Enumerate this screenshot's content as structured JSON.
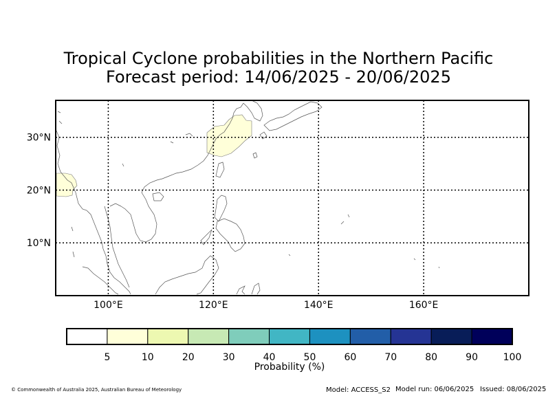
{
  "title_line1": "Tropical Cyclone probabilities in the Northern Pacific",
  "title_line2": "Forecast period: 14/06/2025 - 20/06/2025",
  "map": {
    "lon_range": [
      90,
      180
    ],
    "lat_range": [
      0,
      37
    ],
    "lon_ticks": [
      100,
      120,
      140,
      160
    ],
    "lat_ticks": [
      10,
      20,
      30
    ],
    "lon_tick_labels": [
      "100°E",
      "120°E",
      "140°E",
      "160°E"
    ],
    "lat_tick_labels": [
      "10°N",
      "20°N",
      "30°N"
    ],
    "probability_areas": [
      {
        "name": "East China Sea",
        "probability_bin": "5-10"
      },
      {
        "name": "Northern Myanmar / Bay of Bengal edge",
        "probability_bin": "5-10"
      }
    ]
  },
  "colorbar": {
    "label": "Probability (%)",
    "tick_labels": [
      "5",
      "10",
      "20",
      "30",
      "40",
      "50",
      "60",
      "70",
      "80",
      "90",
      "100"
    ],
    "colors": [
      "#ffffff",
      "#ffffd9",
      "#edf8b1",
      "#c7e9b4",
      "#7fcdbb",
      "#41b6c4",
      "#1d91c0",
      "#225ea8",
      "#253494",
      "#081d58",
      "#00005a"
    ]
  },
  "footer": {
    "copyright": "© Commonwealth of Australia 2025, Australian Bureau of Meteorology",
    "model": "Model: ACCESS_S2",
    "model_run": "Model run: 06/06/2025",
    "issued": "Issued: 08/06/2025"
  }
}
